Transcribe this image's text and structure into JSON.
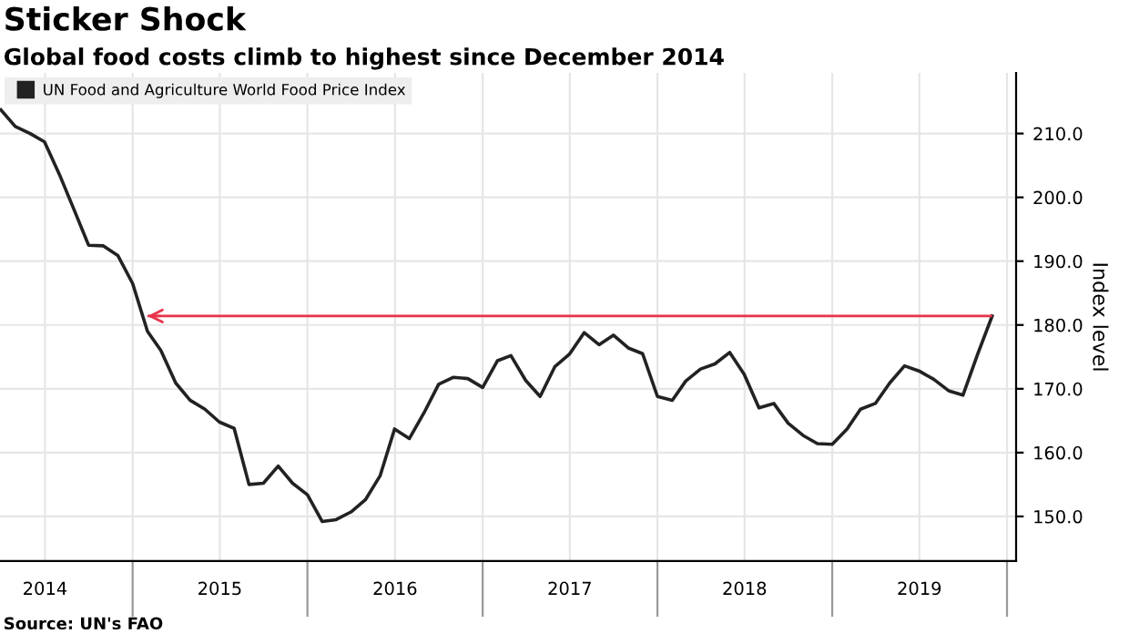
{
  "chart_data": {
    "type": "line",
    "title": "Sticker Shock",
    "subtitle": "Global food costs climb to highest since December 2014",
    "ylabel": "Index level",
    "annotations": [
      "Source: UN's FAO"
    ],
    "x": [
      "2014-04",
      "2014-05",
      "2014-06",
      "2014-07",
      "2014-08",
      "2014-09",
      "2014-10",
      "2014-11",
      "2014-12",
      "2015-01",
      "2015-02",
      "2015-03",
      "2015-04",
      "2015-05",
      "2015-06",
      "2015-07",
      "2015-08",
      "2015-09",
      "2015-10",
      "2015-11",
      "2015-12",
      "2016-01",
      "2016-02",
      "2016-03",
      "2016-04",
      "2016-05",
      "2016-06",
      "2016-07",
      "2016-08",
      "2016-09",
      "2016-10",
      "2016-11",
      "2016-12",
      "2017-01",
      "2017-02",
      "2017-03",
      "2017-04",
      "2017-05",
      "2017-06",
      "2017-07",
      "2017-08",
      "2017-09",
      "2017-10",
      "2017-11",
      "2017-12",
      "2018-01",
      "2018-02",
      "2018-03",
      "2018-04",
      "2018-05",
      "2018-06",
      "2018-07",
      "2018-08",
      "2018-09",
      "2018-10",
      "2018-11",
      "2018-12",
      "2019-01",
      "2019-02",
      "2019-03",
      "2019-04",
      "2019-05",
      "2019-06",
      "2019-07",
      "2019-08",
      "2019-09",
      "2019-10",
      "2019-11",
      "2019-12"
    ],
    "series": [
      {
        "name": "UN Food and Agriculture World Food Price Index",
        "color": "#222222",
        "values": [
          213.7,
          211.1,
          210.0,
          208.7,
          203.6,
          198.0,
          192.5,
          192.4,
          190.9,
          186.5,
          179.0,
          176.0,
          170.9,
          168.2,
          166.8,
          164.8,
          163.8,
          155.0,
          155.2,
          157.9,
          155.2,
          153.4,
          149.2,
          149.5,
          150.7,
          152.6,
          156.4,
          163.7,
          162.2,
          166.3,
          170.7,
          171.8,
          171.6,
          170.2,
          174.4,
          175.2,
          171.3,
          168.8,
          173.5,
          175.4,
          178.8,
          176.9,
          178.4,
          176.4,
          175.5,
          168.8,
          168.2,
          171.2,
          173.1,
          173.9,
          175.7,
          172.3,
          167.0,
          167.7,
          164.6,
          162.7,
          161.4,
          161.3,
          163.7,
          166.8,
          167.7,
          170.9,
          173.6,
          172.8,
          171.5,
          169.7,
          169.0,
          175.5,
          181.4
        ]
      }
    ],
    "ref_lines": [
      {
        "axis": "y",
        "value": 181.4,
        "color": "#e8334a"
      }
    ],
    "xlim": [
      "2014-03-30",
      "2020-01-20"
    ],
    "xticks": [
      {
        "value": "2014-07-02",
        "label": "2014"
      },
      {
        "value": "2015-01-01",
        "label": null
      },
      {
        "value": "2015-07-02",
        "label": "2015"
      },
      {
        "value": "2016-01-01",
        "label": null
      },
      {
        "value": "2016-07-02",
        "label": "2016"
      },
      {
        "value": "2017-01-01",
        "label": null
      },
      {
        "value": "2017-07-02",
        "label": "2017"
      },
      {
        "value": "2018-01-01",
        "label": null
      },
      {
        "value": "2018-07-02",
        "label": "2018"
      },
      {
        "value": "2019-01-01",
        "label": null
      },
      {
        "value": "2019-07-02",
        "label": "2019"
      },
      {
        "value": "2020-01-01",
        "label": null
      }
    ],
    "ylim": [
      143,
      219.5
    ],
    "yticks": [
      {
        "value": 150,
        "label": "150.0"
      },
      {
        "value": 160,
        "label": "160.0"
      },
      {
        "value": 170,
        "label": "170.0"
      },
      {
        "value": 180,
        "label": "180.0"
      },
      {
        "value": 190,
        "label": "190.0"
      },
      {
        "value": 200,
        "label": "200.0"
      },
      {
        "value": 210,
        "label": "210.0"
      }
    ],
    "grid": true,
    "legend": "top left",
    "marker": "none",
    "line_style": "solid"
  }
}
